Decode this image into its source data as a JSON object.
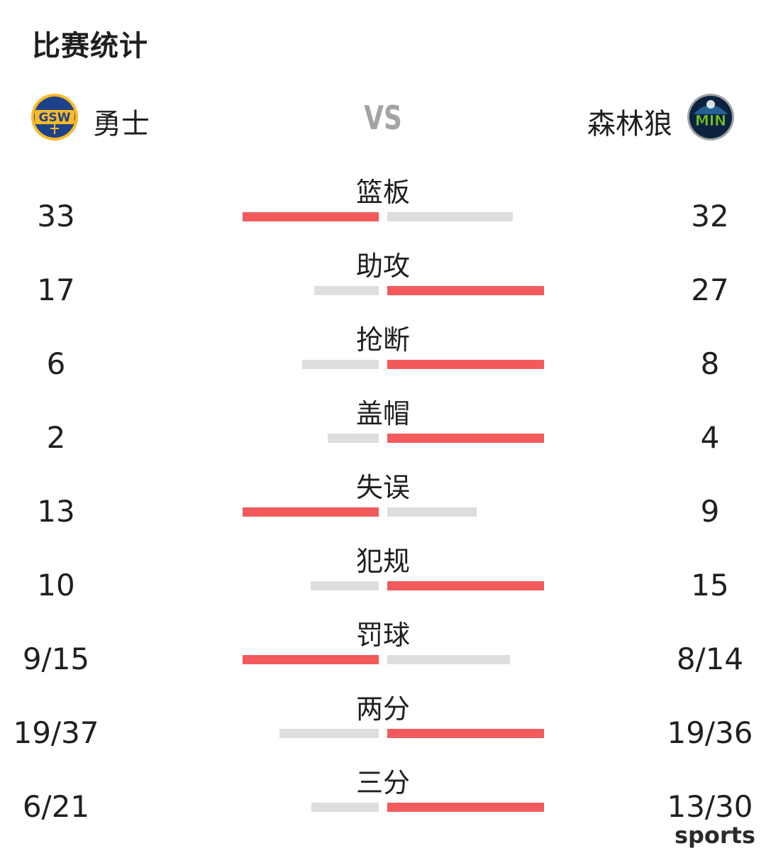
{
  "title": "比赛统计",
  "teams": {
    "home": {
      "name": "勇士",
      "logo_text": "GSW",
      "logo_bg": "#1d428a",
      "logo_accent": "#fdb927"
    },
    "away": {
      "name": "森林狼",
      "logo_text": "MIN",
      "logo_bg": "#0c2340",
      "logo_accent": "#78be20"
    },
    "vs": "VS"
  },
  "colors": {
    "leader_bar": "#f25a5c",
    "trailing_bar": "#dedede",
    "vs_text": "#a3a3a3"
  },
  "stats": [
    {
      "label": "篮板",
      "home": "33",
      "away": "32",
      "home_level": 1.0,
      "away_level": 0.97,
      "leader": "home"
    },
    {
      "label": "助攻",
      "home": "17",
      "away": "27",
      "home_level": 0.63,
      "away_level": 1.0,
      "leader": "away"
    },
    {
      "label": "抢断",
      "home": "6",
      "away": "8",
      "home_level": 0.75,
      "away_level": 1.0,
      "leader": "away"
    },
    {
      "label": "盖帽",
      "home": "2",
      "away": "4",
      "home_level": 0.5,
      "away_level": 1.0,
      "leader": "away"
    },
    {
      "label": "失误",
      "home": "13",
      "away": "9",
      "home_level": 1.0,
      "away_level": 0.69,
      "leader": "home"
    },
    {
      "label": "犯规",
      "home": "10",
      "away": "15",
      "home_level": 0.67,
      "away_level": 1.0,
      "leader": "away"
    },
    {
      "label": "罚球",
      "home": "9/15",
      "away": "8/14",
      "home_level": 1.0,
      "away_level": 0.95,
      "leader": "home"
    },
    {
      "label": "两分",
      "home": "19/37",
      "away": "19/36",
      "home_level": 0.97,
      "away_level": 1.0,
      "leader": "away"
    },
    {
      "label": "三分",
      "home": "6/21",
      "away": "13/30",
      "home_level": 0.66,
      "away_level": 1.0,
      "leader": "away"
    }
  ],
  "watermark": "sports"
}
